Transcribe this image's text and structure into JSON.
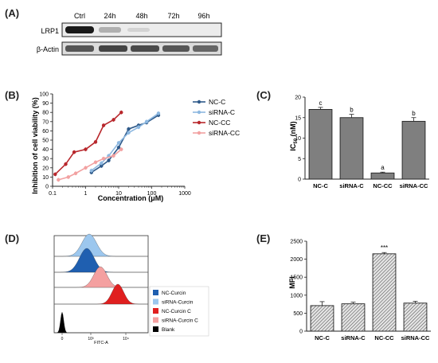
{
  "panels": {
    "A": {
      "label": "(A)",
      "lanes": [
        "Ctrl",
        "24h",
        "48h",
        "72h",
        "96h"
      ],
      "rows": [
        "LRP1",
        "β-Actin"
      ]
    },
    "B": {
      "label": "(B)",
      "legend": [
        "NC-C",
        "siRNA-C",
        "NC-CC",
        "siRNA-CC"
      ]
    },
    "C": {
      "label": "(C)"
    },
    "D": {
      "label": "(D)",
      "legend": [
        "NC-Curcin",
        "siRNA-Curcin",
        "NC-Curcin C",
        "siRNA-Curcin C",
        "Blank"
      ]
    },
    "E": {
      "label": "(E)"
    }
  },
  "colors": {
    "nc_c": "#2f5a8a",
    "sirna_c": "#8db8e0",
    "nc_cc": "#b8272c",
    "sirna_cc": "#f2a1a1",
    "bar_gray": "#7f7f7f",
    "blank": "#000000"
  },
  "chart_data": [
    {
      "id": "B",
      "type": "line",
      "xlabel": "Concentration (μM)",
      "ylabel": "Inhibition of cell viability (%)",
      "xscale": "log",
      "xlim": [
        0.1,
        1000
      ],
      "ylim": [
        0,
        100
      ],
      "xticks": [
        "0.1",
        "1",
        "10",
        "100",
        "1000"
      ],
      "yticks": [
        "0",
        "10",
        "20",
        "30",
        "40",
        "50",
        "60",
        "70",
        "80",
        "90",
        "100"
      ],
      "legend_position": "right",
      "series": [
        {
          "name": "NC-C",
          "color": "#2f5a8a",
          "x": [
            1.5,
            3,
            5,
            10,
            20,
            40,
            70,
            160
          ],
          "y": [
            15,
            22,
            28,
            42,
            62,
            66,
            69,
            77
          ]
        },
        {
          "name": "siRNA-C",
          "color": "#8db8e0",
          "x": [
            1.5,
            3,
            5,
            10,
            20,
            40,
            70,
            160
          ],
          "y": [
            17,
            25,
            33,
            47,
            58,
            64,
            70,
            79
          ]
        },
        {
          "name": "NC-CC",
          "color": "#b8272c",
          "x": [
            0.12,
            0.25,
            0.45,
            1,
            2,
            3.5,
            7,
            12
          ],
          "y": [
            13,
            24,
            37,
            40,
            48,
            66,
            72,
            80
          ]
        },
        {
          "name": "siRNA-CC",
          "color": "#f2a1a1",
          "x": [
            0.15,
            0.3,
            0.5,
            1,
            2,
            3.5,
            7,
            12
          ],
          "y": [
            7,
            10,
            14,
            20,
            26,
            30,
            33,
            40
          ]
        }
      ]
    },
    {
      "id": "C",
      "type": "bar",
      "ylabel": "IC50 (nM)",
      "ylim": [
        0,
        20
      ],
      "yticks": [
        "0",
        "5",
        "10",
        "15",
        "20"
      ],
      "categories": [
        "NC-C",
        "siRNA-C",
        "NC-CC",
        "siRNA-CC"
      ],
      "values": [
        17.0,
        15.0,
        1.5,
        14.1
      ],
      "errors": [
        0.5,
        0.8,
        0.2,
        0.9
      ],
      "annotations": [
        "c",
        "b",
        "a",
        "b"
      ]
    },
    {
      "id": "D",
      "type": "area",
      "xlabel": "FITC-A",
      "xscale": "log",
      "xticks": [
        "0",
        "10³",
        "10⁴"
      ],
      "series": [
        {
          "name": "NC-Curcin",
          "color": "#1f5fb0"
        },
        {
          "name": "siRNA-Curcin",
          "color": "#9cc7ee"
        },
        {
          "name": "NC-Curcin C",
          "color": "#e01f1f"
        },
        {
          "name": "siRNA-Curcin C",
          "color": "#f4a0a0"
        },
        {
          "name": "Blank",
          "color": "#000000"
        }
      ]
    },
    {
      "id": "E",
      "type": "bar",
      "ylabel": "MFI",
      "ylim": [
        0,
        2500
      ],
      "yticks": [
        "0",
        "500",
        "1000",
        "1500",
        "2000",
        "2500"
      ],
      "categories": [
        "NC-C",
        "siRNA-C",
        "NC-CC",
        "siRNA-CC"
      ],
      "values": [
        710,
        760,
        2150,
        780
      ],
      "errors": [
        110,
        45,
        35,
        50
      ],
      "annotations": [
        "",
        "",
        "***",
        ""
      ]
    }
  ]
}
